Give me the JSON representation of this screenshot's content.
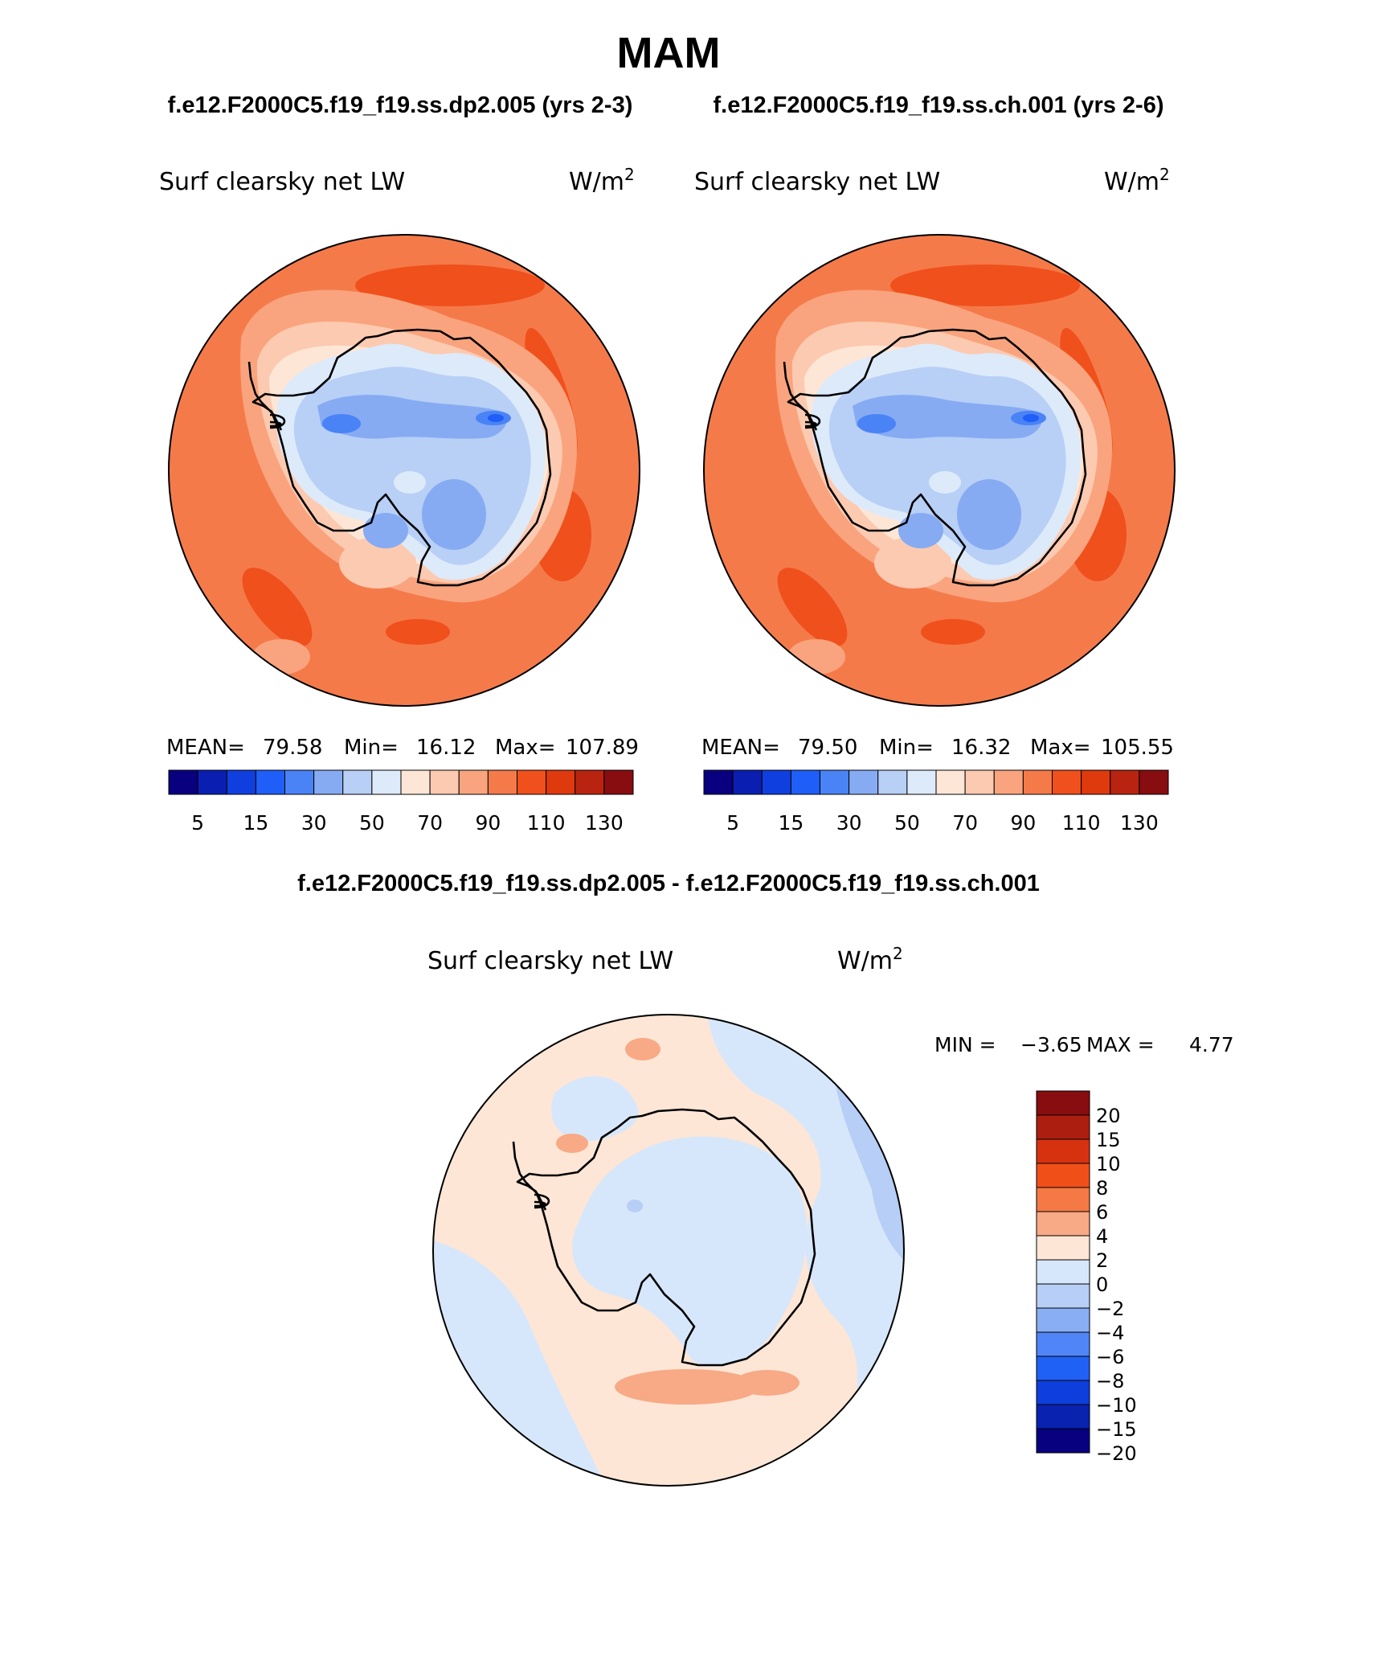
{
  "page": {
    "title": "MAM",
    "case1_header": "f.e12.F2000C5.f19_f19.ss.dp2.005 (yrs 2-3)",
    "case2_header": "f.e12.F2000C5.f19_f19.ss.ch.001 (yrs 2-6)",
    "diff_header": "f.e12.F2000C5.f19_f19.ss.dp2.005 - f.e12.F2000C5.f19_f19.ss.ch.001"
  },
  "panels": [
    {
      "id": "case1",
      "variable": "Surf clearsky net LW",
      "units_base": "W/m",
      "units_sup": "2",
      "stats": {
        "mean_label": "MEAN=",
        "mean": "79.58",
        "min_label": "Min=",
        "min": "16.12",
        "max_label": "Max=",
        "max": "107.89"
      }
    },
    {
      "id": "case2",
      "variable": "Surf clearsky net LW",
      "units_base": "W/m",
      "units_sup": "2",
      "stats": {
        "mean_label": "MEAN=",
        "mean": "79.50",
        "min_label": "Min=",
        "min": "16.32",
        "max_label": "Max=",
        "max": "105.55"
      }
    },
    {
      "id": "difference",
      "variable": "Surf clearsky net LW",
      "units_base": "W/m",
      "units_sup": "2",
      "stats": {
        "min_label": "MIN =",
        "min": "−3.65",
        "max_label": "MAX =",
        "max": "4.77"
      }
    }
  ],
  "colorbars": {
    "field_colors": [
      "#08007f",
      "#0a1fb2",
      "#0f3fdf",
      "#1f5ef7",
      "#4a83f5",
      "#86abf3",
      "#b8cff6",
      "#ddeafa",
      "#fde6d6",
      "#fccab0",
      "#f9a47e",
      "#f57a4a",
      "#f0501c",
      "#de3a0e",
      "#b82410",
      "#880d10"
    ],
    "field_labels": [
      "5",
      "15",
      "30",
      "50",
      "70",
      "90",
      "110",
      "130"
    ],
    "diff_colors": [
      "#880d10",
      "#ac1f10",
      "#d73210",
      "#f14f18",
      "#f57945",
      "#f8a985",
      "#fde6d6",
      "#d7e7fb",
      "#b7cef6",
      "#8aaef3",
      "#4f85f6",
      "#2061f5",
      "#0e3fdc",
      "#0a22b0",
      "#07007f"
    ],
    "diff_labels": [
      "20",
      "15",
      "10",
      "8",
      "6",
      "4",
      "2",
      "0",
      "−2",
      "−4",
      "−6",
      "−8",
      "−10",
      "−15",
      "−20"
    ]
  },
  "map_colors": {
    "ocean_field": "#f57a4a",
    "band_dark": "#f0501c",
    "band_light": "#f9a47e",
    "band_pale": "#fccab0",
    "coast_pale": "#fde6d6",
    "ice_light": "#ddeafa",
    "ice_mid": "#b8cff6",
    "ice_deep": "#86abf3",
    "ice_core": "#4a83f5",
    "ice_peak": "#1f5ef7",
    "diff_bg": "#fde6d6",
    "diff_neg1": "#d7e7fb",
    "diff_neg2": "#b7cef6",
    "diff_pos2": "#f8a985",
    "coastline": "#000000"
  }
}
